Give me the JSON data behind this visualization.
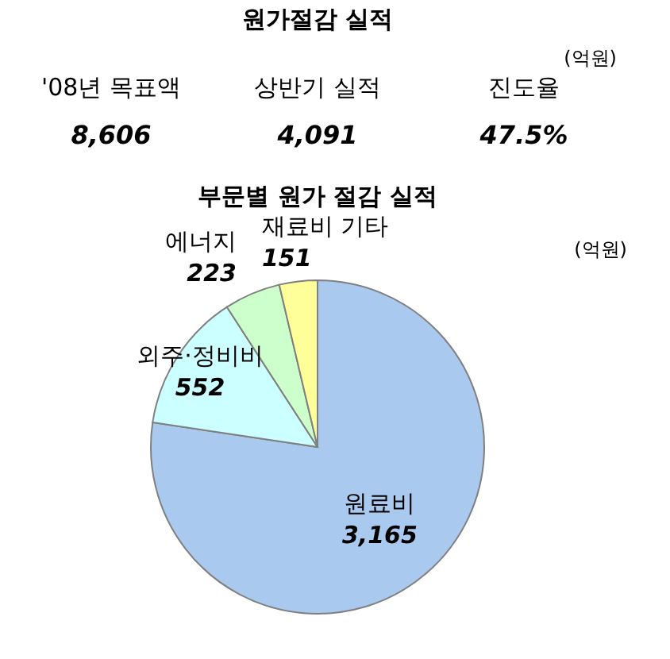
{
  "chart_data": [
    {
      "type": "other",
      "title": "원가절감 실적",
      "annotations": [
        "(억원)",
        "'08년 목표액",
        "상반기 실적",
        "진도율",
        "8,606",
        "4,091",
        "47.5%"
      ]
    },
    {
      "type": "pie",
      "title": "부문별 원가 절감 실적",
      "annotations": [
        "(억원)"
      ],
      "categories": [
        "원료비",
        "외주·정비비",
        "에너지",
        "재료비 기타"
      ],
      "values": [
        3165,
        552,
        223,
        151
      ],
      "colors": [
        "#a9c9ef",
        "#ccffff",
        "#ccffcc",
        "#ffff99"
      ],
      "value_labels": [
        "3,165",
        "552",
        "223",
        "151"
      ],
      "legend": false
    }
  ]
}
